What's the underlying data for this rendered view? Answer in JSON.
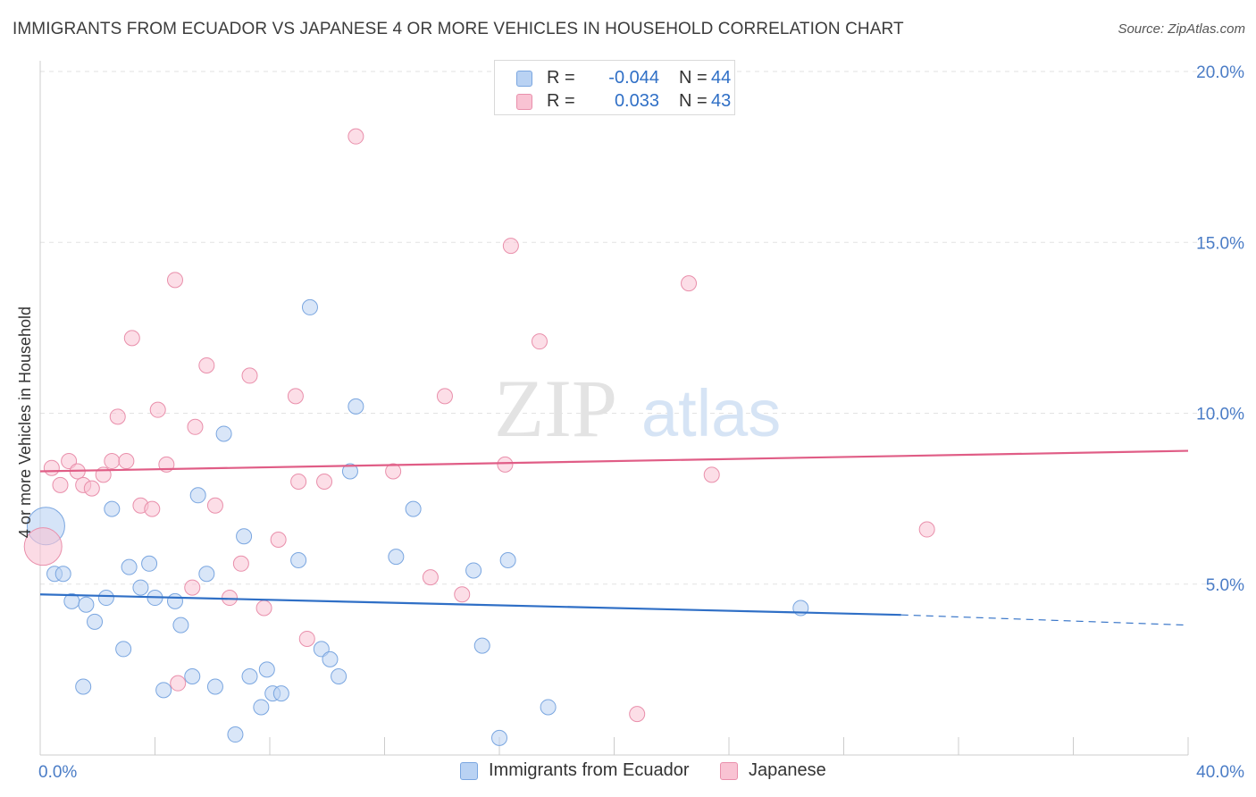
{
  "header": {
    "title": "IMMIGRANTS FROM ECUADOR VS JAPANESE 4 OR MORE VEHICLES IN HOUSEHOLD CORRELATION CHART",
    "source": "Source: ZipAtlas.com"
  },
  "watermark": {
    "zip": "ZIP",
    "atlas": "atlas"
  },
  "legend": {
    "r_label": "R =",
    "n_label": "N =",
    "series": [
      {
        "name": "Immigrants from Ecuador",
        "r": "-0.044",
        "n": "44",
        "fill": "#b9d2f3",
        "stroke": "#7aa6e0"
      },
      {
        "name": "Japanese",
        "r": "0.033",
        "n": "43",
        "fill": "#f9c3d3",
        "stroke": "#e98fab"
      }
    ]
  },
  "chart_data": {
    "type": "scatter",
    "title": "IMMIGRANTS FROM ECUADOR VS JAPANESE 4 OR MORE VEHICLES IN HOUSEHOLD CORRELATION CHART",
    "xlabel": "",
    "ylabel": "4 or more Vehicles in Household",
    "xlim": [
      0,
      40
    ],
    "ylim": [
      0,
      20
    ],
    "x_tick_labels": [
      "0.0%",
      "40.0%"
    ],
    "y_ticks": [
      5,
      10,
      15,
      20
    ],
    "y_tick_labels": [
      "5.0%",
      "10.0%",
      "15.0%",
      "20.0%"
    ],
    "grid": true,
    "legend_position": "top-center",
    "series": [
      {
        "name": "Immigrants from Ecuador",
        "color": "#7aa6e0",
        "fill": "#b9d2f3",
        "line_color": "#2f6fc6",
        "trend": {
          "x0": 0,
          "y0": 4.7,
          "x1": 30,
          "y1": 4.1,
          "dash_to_x": 40,
          "dash_to_y": 3.8
        },
        "points": [
          {
            "x": 0.2,
            "y": 6.7,
            "big": true
          },
          {
            "x": 0.5,
            "y": 5.3
          },
          {
            "x": 0.8,
            "y": 5.3
          },
          {
            "x": 1.1,
            "y": 4.5
          },
          {
            "x": 1.5,
            "y": 2.0
          },
          {
            "x": 1.6,
            "y": 4.4
          },
          {
            "x": 1.9,
            "y": 3.9
          },
          {
            "x": 2.3,
            "y": 4.6
          },
          {
            "x": 2.5,
            "y": 7.2
          },
          {
            "x": 2.9,
            "y": 3.1
          },
          {
            "x": 3.1,
            "y": 5.5
          },
          {
            "x": 3.5,
            "y": 4.9
          },
          {
            "x": 3.8,
            "y": 5.6
          },
          {
            "x": 4.0,
            "y": 4.6
          },
          {
            "x": 4.3,
            "y": 1.9
          },
          {
            "x": 4.7,
            "y": 4.5
          },
          {
            "x": 4.9,
            "y": 3.8
          },
          {
            "x": 5.3,
            "y": 2.3
          },
          {
            "x": 5.5,
            "y": 7.6
          },
          {
            "x": 5.8,
            "y": 5.3
          },
          {
            "x": 6.1,
            "y": 2.0
          },
          {
            "x": 6.4,
            "y": 9.4
          },
          {
            "x": 6.8,
            "y": 0.6
          },
          {
            "x": 7.1,
            "y": 6.4
          },
          {
            "x": 7.3,
            "y": 2.3
          },
          {
            "x": 7.7,
            "y": 1.4
          },
          {
            "x": 7.9,
            "y": 2.5
          },
          {
            "x": 8.1,
            "y": 1.8
          },
          {
            "x": 8.4,
            "y": 1.8
          },
          {
            "x": 9.0,
            "y": 5.7
          },
          {
            "x": 9.4,
            "y": 13.1
          },
          {
            "x": 9.8,
            "y": 3.1
          },
          {
            "x": 10.1,
            "y": 2.8
          },
          {
            "x": 10.4,
            "y": 2.3
          },
          {
            "x": 10.8,
            "y": 8.3
          },
          {
            "x": 11.0,
            "y": 10.2
          },
          {
            "x": 12.4,
            "y": 5.8
          },
          {
            "x": 13.0,
            "y": 7.2
          },
          {
            "x": 15.1,
            "y": 5.4
          },
          {
            "x": 15.4,
            "y": 3.2
          },
          {
            "x": 16.0,
            "y": 0.5
          },
          {
            "x": 16.3,
            "y": 5.7
          },
          {
            "x": 17.7,
            "y": 1.4
          },
          {
            "x": 26.5,
            "y": 4.3
          }
        ]
      },
      {
        "name": "Japanese",
        "color": "#e98fab",
        "fill": "#f9c3d3",
        "line_color": "#e05d86",
        "trend": {
          "x0": 0,
          "y0": 8.3,
          "x1": 40,
          "y1": 8.9
        },
        "points": [
          {
            "x": 0.1,
            "y": 6.1,
            "big": true
          },
          {
            "x": 0.4,
            "y": 8.4
          },
          {
            "x": 0.7,
            "y": 7.9
          },
          {
            "x": 1.0,
            "y": 8.6
          },
          {
            "x": 1.3,
            "y": 8.3
          },
          {
            "x": 1.5,
            "y": 7.9
          },
          {
            "x": 1.8,
            "y": 7.8
          },
          {
            "x": 2.2,
            "y": 8.2
          },
          {
            "x": 2.5,
            "y": 8.6
          },
          {
            "x": 2.7,
            "y": 9.9
          },
          {
            "x": 3.0,
            "y": 8.6
          },
          {
            "x": 3.2,
            "y": 12.2
          },
          {
            "x": 3.5,
            "y": 7.3
          },
          {
            "x": 3.9,
            "y": 7.2
          },
          {
            "x": 4.1,
            "y": 10.1
          },
          {
            "x": 4.4,
            "y": 8.5
          },
          {
            "x": 4.8,
            "y": 2.1
          },
          {
            "x": 4.7,
            "y": 13.9
          },
          {
            "x": 5.3,
            "y": 4.9
          },
          {
            "x": 5.4,
            "y": 9.6
          },
          {
            "x": 5.8,
            "y": 11.4
          },
          {
            "x": 6.1,
            "y": 7.3
          },
          {
            "x": 6.6,
            "y": 4.6
          },
          {
            "x": 7.0,
            "y": 5.6
          },
          {
            "x": 7.3,
            "y": 11.1
          },
          {
            "x": 7.8,
            "y": 4.3
          },
          {
            "x": 8.3,
            "y": 6.3
          },
          {
            "x": 8.9,
            "y": 10.5
          },
          {
            "x": 9.0,
            "y": 8.0
          },
          {
            "x": 9.3,
            "y": 3.4
          },
          {
            "x": 9.9,
            "y": 8.0
          },
          {
            "x": 11.0,
            "y": 18.1
          },
          {
            "x": 12.3,
            "y": 8.3
          },
          {
            "x": 13.6,
            "y": 5.2
          },
          {
            "x": 14.1,
            "y": 10.5
          },
          {
            "x": 14.7,
            "y": 4.7
          },
          {
            "x": 16.2,
            "y": 8.5
          },
          {
            "x": 16.4,
            "y": 14.9
          },
          {
            "x": 17.4,
            "y": 12.1
          },
          {
            "x": 20.8,
            "y": 1.2
          },
          {
            "x": 22.6,
            "y": 13.8
          },
          {
            "x": 23.4,
            "y": 8.2
          },
          {
            "x": 30.9,
            "y": 6.6
          }
        ]
      }
    ]
  }
}
